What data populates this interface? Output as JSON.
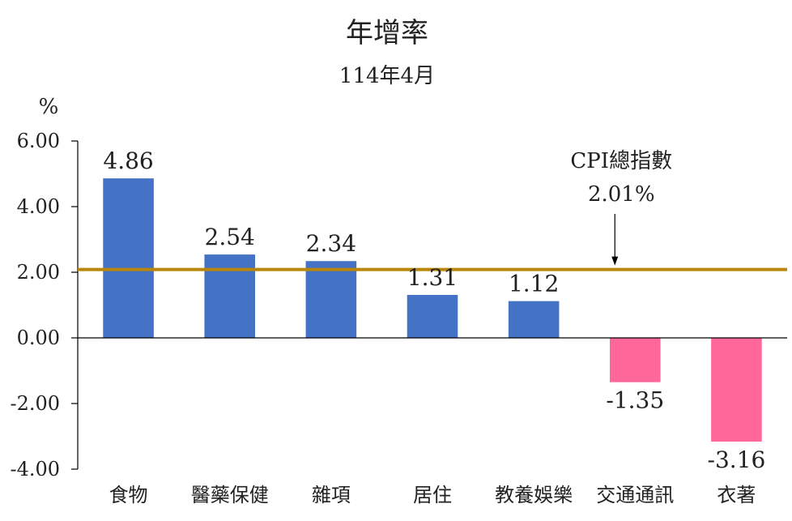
{
  "chart_data": {
    "type": "bar",
    "title": "年增率",
    "subtitle": "114年4月",
    "ylabel": "%",
    "xlabel": "",
    "ylim": [
      -4,
      6
    ],
    "yticks": [
      "6.00",
      "4.00",
      "2.00",
      "0.00",
      "-2.00",
      "-4.00"
    ],
    "categories": [
      "食物",
      "醫藥保健",
      "雜項",
      "居住",
      "教養娛樂",
      "交通通訊",
      "衣著"
    ],
    "values": [
      4.86,
      2.54,
      2.34,
      1.31,
      1.12,
      -1.35,
      -3.16
    ],
    "value_labels": [
      "4.86",
      "2.54",
      "2.34",
      "1.31",
      "1.12",
      "-1.35",
      "-3.16"
    ],
    "reference_line": {
      "name": "CPI總指數",
      "value": 2.01,
      "label": "2.01%",
      "color": "#B8860B"
    },
    "colors": {
      "positive": "#4472C4",
      "negative": "#FF6699"
    },
    "grid": false,
    "legend": "none"
  }
}
